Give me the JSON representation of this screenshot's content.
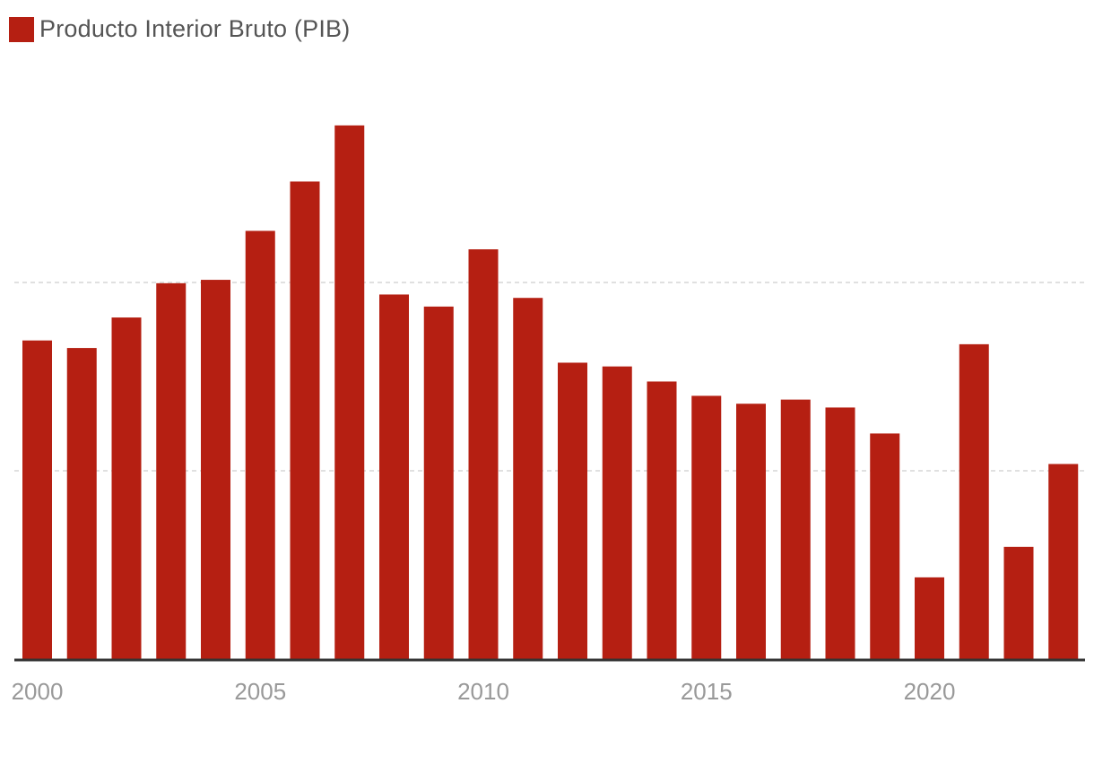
{
  "legend": {
    "label": "Producto Interior Bruto (PIB)",
    "color": "#b51f12"
  },
  "chart_data": {
    "type": "bar",
    "title": "",
    "xlabel": "",
    "ylabel": "",
    "legend": [
      "Producto Interior Bruto (PIB)"
    ],
    "bar_color": "#b51f12",
    "grid": true,
    "gridlines": [
      5,
      10
    ],
    "ylim": [
      0,
      20
    ],
    "categories": [
      "2000",
      "2001",
      "2002",
      "2003",
      "2004",
      "2005",
      "2006",
      "2007",
      "2008",
      "2009",
      "2010",
      "2011",
      "2012",
      "2013",
      "2014",
      "2015",
      "2016",
      "2017",
      "2018",
      "2019",
      "2020",
      "2021",
      "2022",
      "2023"
    ],
    "x_tick_labels": [
      "2000",
      "2005",
      "2010",
      "2015",
      "2020"
    ],
    "values": [
      8.46,
      8.26,
      9.07,
      9.98,
      10.07,
      11.37,
      12.68,
      14.17,
      9.68,
      9.36,
      10.88,
      9.59,
      7.87,
      7.77,
      7.37,
      6.99,
      6.78,
      6.89,
      6.68,
      5.99,
      2.17,
      8.36,
      2.98,
      5.18
    ]
  }
}
